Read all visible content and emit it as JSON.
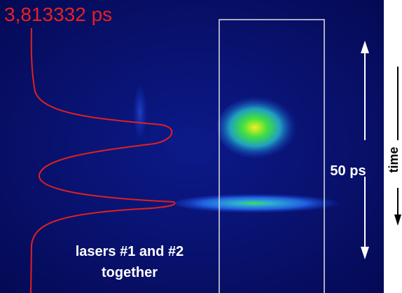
{
  "header": {
    "title": "3,813332 ps"
  },
  "annotations": {
    "interval": "50 ps",
    "axis": "time",
    "caption": [
      "lasers #1 and #2",
      "together"
    ]
  }
}
